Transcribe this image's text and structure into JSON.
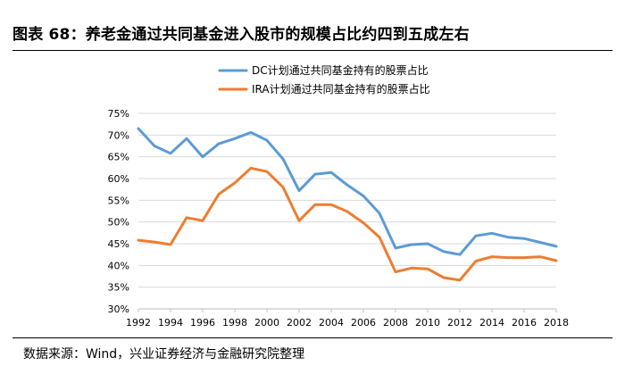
{
  "title": "图表 68：养老金通过共同基金进入股市的规模占比约四到五成左右",
  "source": "数据来源：Wind，兴业证券经济与金融研究院整理",
  "colors": {
    "dc": "#5B9BD5",
    "ira": "#ED7D31",
    "grid": "#D9D9D9",
    "axis": "#BFBFBF",
    "text": "#000000"
  },
  "chart_data": {
    "type": "line",
    "title": "",
    "xlabel": "",
    "ylabel": "",
    "x": [
      1992,
      1993,
      1994,
      1995,
      1996,
      1997,
      1998,
      1999,
      2000,
      2001,
      2002,
      2003,
      2004,
      2005,
      2006,
      2007,
      2008,
      2009,
      2010,
      2011,
      2012,
      2013,
      2014,
      2015,
      2016,
      2017,
      2018
    ],
    "xticks": [
      "1992",
      "1994",
      "1996",
      "1998",
      "2000",
      "2002",
      "2004",
      "2006",
      "2008",
      "2010",
      "2012",
      "2014",
      "2016",
      "2018"
    ],
    "xlim": [
      1992,
      2018
    ],
    "ylim": [
      30,
      75
    ],
    "yticks": [
      "30%",
      "35%",
      "40%",
      "45%",
      "50%",
      "55%",
      "60%",
      "65%",
      "70%",
      "75%"
    ],
    "grid": true,
    "legend_position": "top-left",
    "series": [
      {
        "name": "DC计划通过共同基金持有的股票占比",
        "values": [
          71.5,
          67.5,
          65.8,
          69.2,
          65.0,
          68.0,
          69.2,
          70.6,
          68.8,
          64.5,
          57.2,
          61.0,
          61.4,
          58.5,
          56.0,
          52.0,
          44.0,
          44.8,
          45.0,
          43.2,
          42.5,
          46.8,
          47.4,
          46.5,
          46.2,
          45.3,
          44.4
        ]
      },
      {
        "name": "IRA计划通过共同基金持有的股票占比",
        "values": [
          45.8,
          45.4,
          44.8,
          51.0,
          50.3,
          56.4,
          59.0,
          62.4,
          61.6,
          58.0,
          50.3,
          54.0,
          54.0,
          52.4,
          49.8,
          46.5,
          38.5,
          39.4,
          39.2,
          37.2,
          36.6,
          41.0,
          42.0,
          41.8,
          41.8,
          42.0,
          41.1
        ]
      }
    ]
  }
}
